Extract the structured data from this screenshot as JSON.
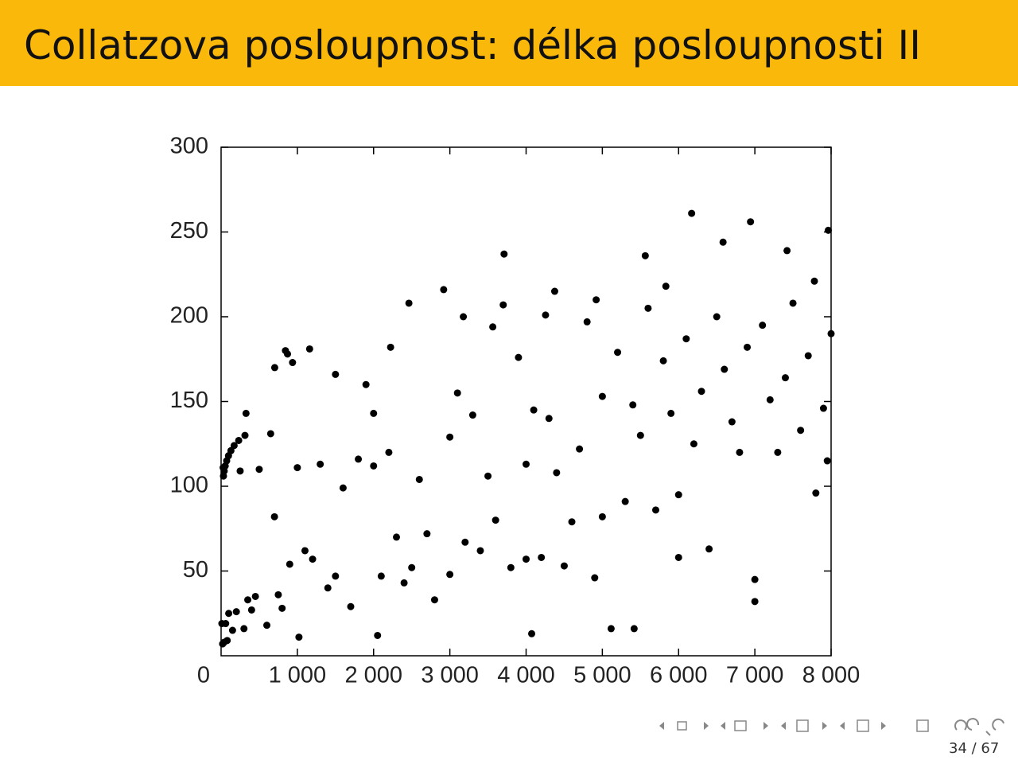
{
  "header": {
    "title": "Collatzova posloupnost: délka posloupnosti II"
  },
  "chart_data": {
    "type": "scatter",
    "color": "#000000",
    "x": [
      10,
      20,
      27,
      31,
      41,
      54,
      73,
      97,
      129,
      171,
      231,
      313,
      327,
      40,
      60,
      80,
      100,
      150,
      200,
      250,
      300,
      350,
      400,
      450,
      500,
      600,
      650,
      700,
      703,
      750,
      800,
      844,
      871,
      900,
      937,
      1000,
      1021,
      1100,
      1161,
      1200,
      1300,
      1400,
      1500,
      1600,
      1700,
      1800,
      1900,
      2000,
      2052,
      2100,
      2200,
      2223,
      2300,
      2400,
      2463,
      2500,
      2600,
      2700,
      2800,
      2919,
      3000,
      3100,
      3177,
      3200,
      3300,
      3400,
      3500,
      3563,
      3600,
      3711,
      3700,
      3800,
      3900,
      4000,
      4073,
      4100,
      4200,
      4255,
      4300,
      4375,
      4400,
      4500,
      4600,
      4700,
      4800,
      4900,
      4919,
      5000,
      5115,
      5200,
      5300,
      5400,
      5417,
      5500,
      5563,
      5600,
      5700,
      5800,
      5833,
      5900,
      6000,
      6100,
      6171,
      6200,
      6300,
      6400,
      6500,
      6583,
      6600,
      6700,
      6800,
      6900,
      6943,
      7000,
      7100,
      7200,
      7300,
      7400,
      7422,
      7500,
      7600,
      7700,
      7781,
      7800,
      7900,
      7963,
      8000,
      7950,
      7000,
      6000,
      5000,
      4000,
      3000,
      2000,
      1500
    ],
    "y": [
      19,
      7,
      111,
      106,
      109,
      112,
      115,
      118,
      121,
      124,
      127,
      130,
      143,
      8,
      19,
      9,
      25,
      15,
      26,
      109,
      16,
      33,
      27,
      35,
      110,
      18,
      131,
      82,
      170,
      36,
      28,
      180,
      178,
      54,
      173,
      111,
      11,
      62,
      181,
      57,
      113,
      40,
      47,
      99,
      29,
      116,
      160,
      112,
      12,
      47,
      120,
      182,
      70,
      43,
      208,
      52,
      104,
      72,
      33,
      216,
      48,
      155,
      200,
      67,
      142,
      62,
      106,
      194,
      80,
      237,
      207,
      52,
      176,
      57,
      13,
      145,
      58,
      201,
      140,
      215,
      108,
      53,
      79,
      122,
      197,
      46,
      210,
      153,
      16,
      179,
      91,
      148,
      16,
      130,
      236,
      205,
      86,
      174,
      218,
      143,
      58,
      187,
      261,
      125,
      156,
      63,
      200,
      244,
      169,
      138,
      120,
      182,
      256,
      32,
      195,
      151,
      120,
      164,
      239,
      208,
      133,
      177,
      221,
      96,
      146,
      251,
      190,
      115,
      45,
      95,
      82,
      113,
      129,
      143,
      166
    ],
    "xlim": [
      0,
      8000
    ],
    "ylim": [
      0,
      300
    ],
    "xticks": [
      0,
      {
        "value": 1000,
        "label": "1 000"
      },
      {
        "value": 2000,
        "label": "2 000"
      },
      {
        "value": 3000,
        "label": "3 000"
      },
      {
        "value": 4000,
        "label": "4 000"
      },
      {
        "value": 5000,
        "label": "5 000"
      },
      {
        "value": 6000,
        "label": "6 000"
      },
      {
        "value": 7000,
        "label": "7 000"
      },
      {
        "value": 8000,
        "label": "8 000"
      }
    ],
    "yticks": [
      50,
      100,
      150,
      200,
      250,
      300
    ]
  },
  "footer": {
    "page": "34 / 67"
  }
}
